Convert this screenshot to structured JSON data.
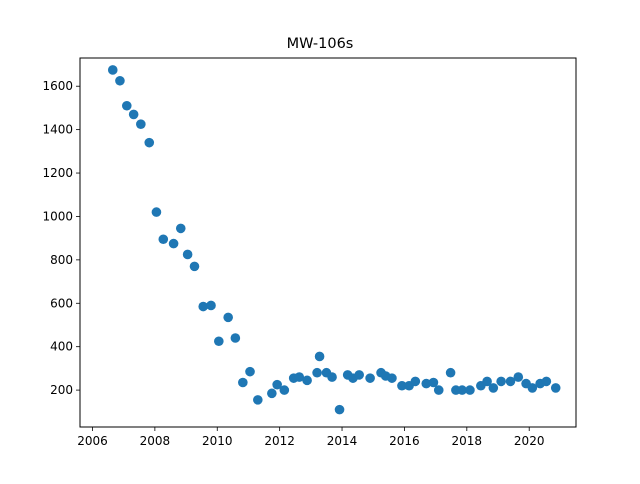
{
  "chart_data": {
    "type": "scatter",
    "title": "MW-106s",
    "xlabel": "",
    "ylabel": "",
    "xlim": [
      2005.6,
      2021.5
    ],
    "ylim": [
      30,
      1730
    ],
    "xticks": [
      2006,
      2008,
      2010,
      2012,
      2014,
      2016,
      2018,
      2020
    ],
    "yticks": [
      200,
      400,
      600,
      800,
      1000,
      1200,
      1400,
      1600
    ],
    "grid": false,
    "legend": "none",
    "marker_color": "#1f77b4",
    "series": [
      {
        "points": [
          [
            2006.65,
            1675
          ],
          [
            2006.88,
            1625
          ],
          [
            2007.1,
            1510
          ],
          [
            2007.32,
            1470
          ],
          [
            2007.55,
            1425
          ],
          [
            2007.82,
            1340
          ],
          [
            2008.05,
            1020
          ],
          [
            2008.27,
            895
          ],
          [
            2008.6,
            875
          ],
          [
            2008.83,
            945
          ],
          [
            2009.05,
            825
          ],
          [
            2009.27,
            770
          ],
          [
            2009.55,
            585
          ],
          [
            2009.8,
            590
          ],
          [
            2010.05,
            425
          ],
          [
            2010.35,
            535
          ],
          [
            2010.58,
            440
          ],
          [
            2010.82,
            235
          ],
          [
            2011.05,
            285
          ],
          [
            2011.3,
            155
          ],
          [
            2011.75,
            185
          ],
          [
            2011.92,
            225
          ],
          [
            2012.15,
            200
          ],
          [
            2012.45,
            255
          ],
          [
            2012.63,
            260
          ],
          [
            2012.88,
            245
          ],
          [
            2013.2,
            280
          ],
          [
            2013.28,
            355
          ],
          [
            2013.5,
            280
          ],
          [
            2013.68,
            260
          ],
          [
            2013.92,
            110
          ],
          [
            2014.18,
            270
          ],
          [
            2014.35,
            255
          ],
          [
            2014.55,
            270
          ],
          [
            2014.9,
            255
          ],
          [
            2015.25,
            280
          ],
          [
            2015.4,
            265
          ],
          [
            2015.6,
            255
          ],
          [
            2015.92,
            220
          ],
          [
            2016.15,
            220
          ],
          [
            2016.35,
            240
          ],
          [
            2016.7,
            230
          ],
          [
            2016.93,
            235
          ],
          [
            2017.1,
            200
          ],
          [
            2017.48,
            280
          ],
          [
            2017.65,
            200
          ],
          [
            2017.85,
            200
          ],
          [
            2018.1,
            200
          ],
          [
            2018.45,
            220
          ],
          [
            2018.65,
            240
          ],
          [
            2018.85,
            210
          ],
          [
            2019.1,
            240
          ],
          [
            2019.4,
            240
          ],
          [
            2019.65,
            260
          ],
          [
            2019.9,
            230
          ],
          [
            2020.1,
            210
          ],
          [
            2020.35,
            230
          ],
          [
            2020.55,
            240
          ],
          [
            2020.85,
            210
          ]
        ]
      }
    ]
  }
}
